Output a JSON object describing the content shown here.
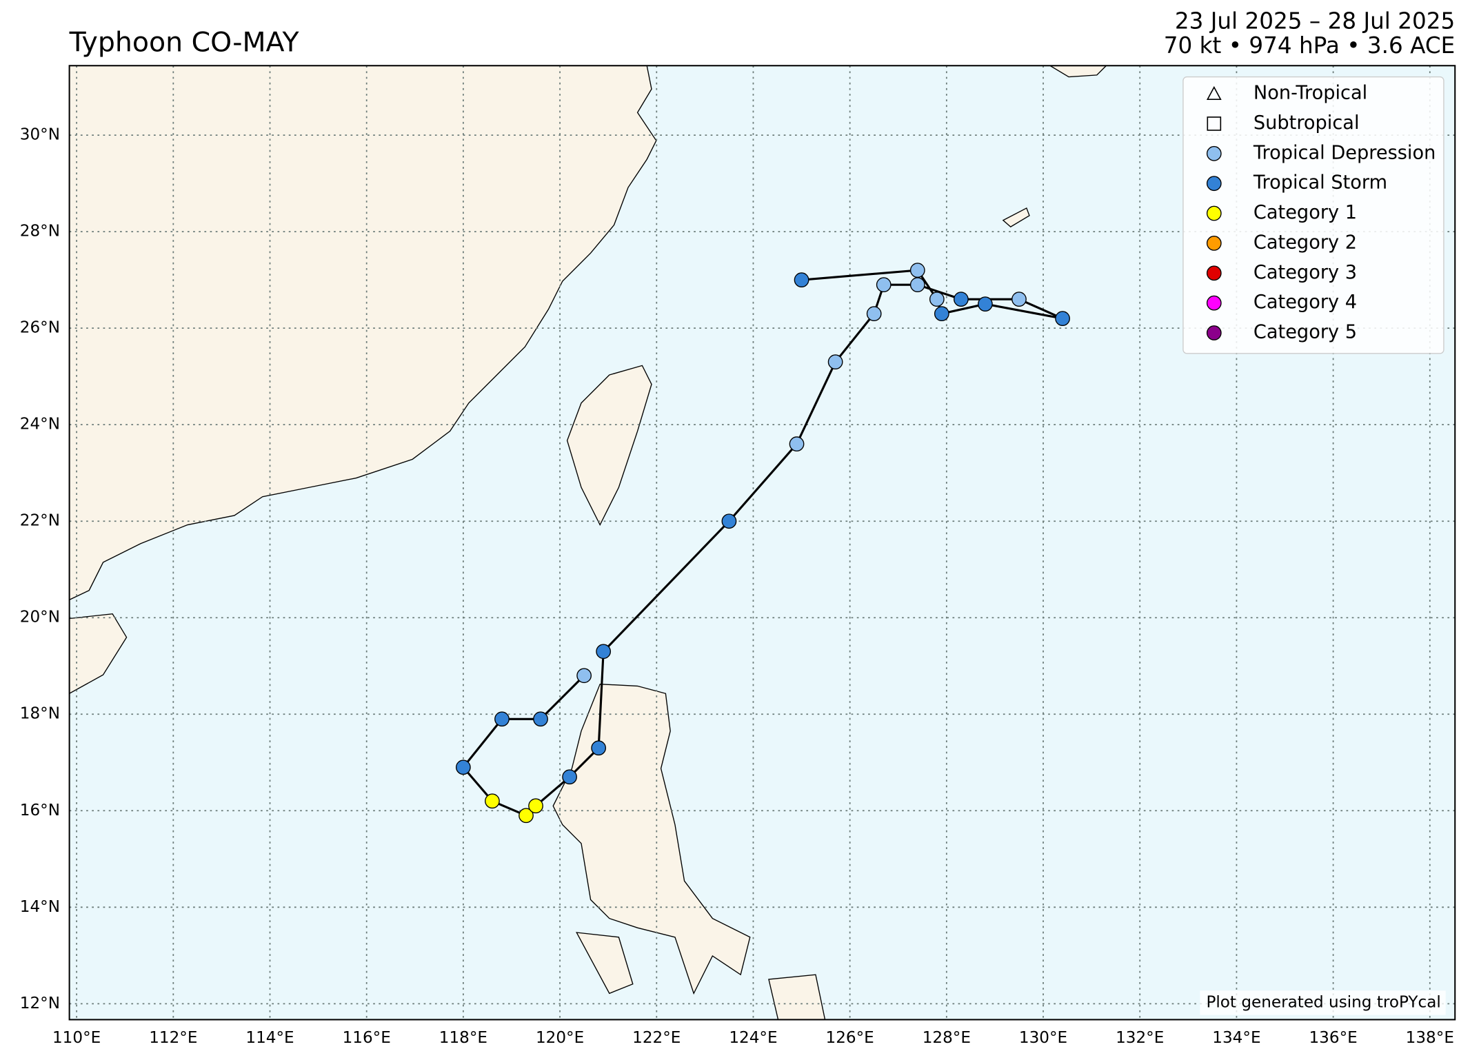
{
  "chart_data": {
    "type": "track",
    "title": "Typhoon CO-MAY",
    "date_range": "23 Jul 2025 – 28 Jul 2025",
    "summary": "70 kt • 974 hPa • 3.6 ACE",
    "credit": "Plot generated using troPYcal",
    "xlim": [
      109.85,
      138.52
    ],
    "ylim": [
      11.67,
      31.44
    ],
    "xticks": [
      {
        "value": 110,
        "label": "110°E"
      },
      {
        "value": 112,
        "label": "112°E"
      },
      {
        "value": 114,
        "label": "114°E"
      },
      {
        "value": 116,
        "label": "116°E"
      },
      {
        "value": 118,
        "label": "118°E"
      },
      {
        "value": 120,
        "label": "120°E"
      },
      {
        "value": 122,
        "label": "122°E"
      },
      {
        "value": 124,
        "label": "124°E"
      },
      {
        "value": 126,
        "label": "126°E"
      },
      {
        "value": 128,
        "label": "128°E"
      },
      {
        "value": 130,
        "label": "130°E"
      },
      {
        "value": 132,
        "label": "132°E"
      },
      {
        "value": 134,
        "label": "134°E"
      },
      {
        "value": 136,
        "label": "136°E"
      },
      {
        "value": 138,
        "label": "138°E"
      }
    ],
    "yticks": [
      {
        "value": 12,
        "label": "12°N"
      },
      {
        "value": 14,
        "label": "14°N"
      },
      {
        "value": 16,
        "label": "16°N"
      },
      {
        "value": 18,
        "label": "18°N"
      },
      {
        "value": 20,
        "label": "20°N"
      },
      {
        "value": 22,
        "label": "22°N"
      },
      {
        "value": 24,
        "label": "24°N"
      },
      {
        "value": 26,
        "label": "26°N"
      },
      {
        "value": 28,
        "label": "28°N"
      },
      {
        "value": 30,
        "label": "30°N"
      }
    ],
    "grid": true,
    "legend_position": "upper right",
    "legend": [
      {
        "name": "Non-Tropical",
        "marker": "triangle",
        "color": "none"
      },
      {
        "name": "Subtropical",
        "marker": "square",
        "color": "none"
      },
      {
        "name": "Tropical Depression",
        "marker": "circle",
        "color": "#8fbfef"
      },
      {
        "name": "Tropical Storm",
        "marker": "circle",
        "color": "#3382d6"
      },
      {
        "name": "Category 1",
        "marker": "circle",
        "color": "#ffff00"
      },
      {
        "name": "Category 2",
        "marker": "circle",
        "color": "#ff9c00"
      },
      {
        "name": "Category 3",
        "marker": "circle",
        "color": "#e00000"
      },
      {
        "name": "Category 4",
        "marker": "circle",
        "color": "#ff00ff"
      },
      {
        "name": "Category 5",
        "marker": "circle",
        "color": "#8b008b"
      }
    ],
    "track": {
      "lon": [
        120.5,
        119.6,
        118.8,
        118.0,
        118.6,
        119.3,
        119.5,
        120.2,
        120.8,
        120.9,
        123.5,
        124.9,
        125.7,
        126.5,
        126.7,
        127.4,
        128.3,
        129.5,
        130.4,
        128.8,
        127.9,
        127.8,
        127.4,
        125.0
      ],
      "lat": [
        18.8,
        17.9,
        17.9,
        16.9,
        16.2,
        15.9,
        16.1,
        16.7,
        17.3,
        19.3,
        22.0,
        23.6,
        25.3,
        26.3,
        26.9,
        26.9,
        26.6,
        26.6,
        26.2,
        26.5,
        26.3,
        26.6,
        27.2,
        27.0
      ],
      "category": [
        "Tropical Depression",
        "Tropical Storm",
        "Tropical Storm",
        "Tropical Storm",
        "Category 1",
        "Category 1",
        "Category 1",
        "Tropical Storm",
        "Tropical Storm",
        "Tropical Storm",
        "Tropical Storm",
        "Tropical Depression",
        "Tropical Depression",
        "Tropical Depression",
        "Tropical Depression",
        "Tropical Depression",
        "Tropical Storm",
        "Tropical Depression",
        "Tropical Storm",
        "Tropical Storm",
        "Tropical Storm",
        "Tropical Depression",
        "Tropical Depression",
        "Tropical Storm"
      ],
      "line_color": "#000000"
    }
  }
}
